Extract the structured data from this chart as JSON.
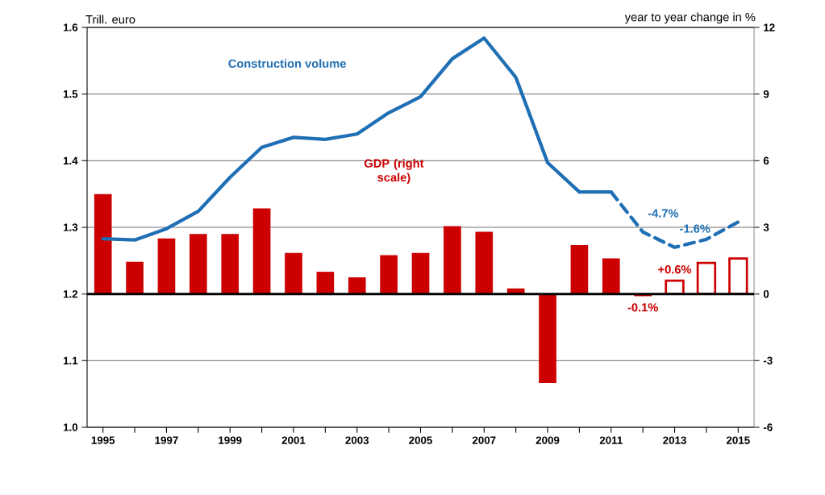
{
  "chart_data": {
    "type": "bar",
    "ylabel": "Trill. euro",
    "y2label": "year to year change in %",
    "xlim": [
      1994.5,
      2015.5
    ],
    "xticks": [
      1995,
      {
        "value": 1996,
        "label": null
      },
      1997,
      {
        "value": 1998,
        "label": null
      },
      1999,
      {
        "value": 2000,
        "label": null
      },
      2001,
      {
        "value": 2002,
        "label": null
      },
      2003,
      {
        "value": 2004,
        "label": null
      },
      2005,
      {
        "value": 2006,
        "label": null
      },
      2007,
      {
        "value": 2008,
        "label": null
      },
      2009,
      {
        "value": 2010,
        "label": null
      },
      2011,
      {
        "value": 2012,
        "label": null
      },
      2013,
      {
        "value": 2014,
        "label": null
      },
      2015
    ],
    "ylim": [
      1.0,
      1.6
    ],
    "yticks": [
      {
        "value": 1.0,
        "label": "1.0"
      },
      1.1,
      1.2,
      1.3,
      1.4,
      1.5,
      1.6
    ],
    "y2lim": [
      -6,
      12
    ],
    "y2ticks": [
      -6,
      -3,
      0,
      3,
      6,
      9,
      12
    ],
    "grid": "y",
    "annotations": [
      {
        "text": "-4.7%",
        "x": 2012,
        "y": 1.293
      },
      {
        "text": "-1.6%",
        "x": 2013,
        "y": 1.27
      }
    ],
    "ref_lines": [
      {
        "axis": "y2",
        "value": 0,
        "color": "#000000"
      }
    ],
    "series": [
      {
        "type": "line",
        "name": "Construction volume",
        "color": "#1f6fb4",
        "x": [
          1995,
          1996,
          1997,
          1998,
          1999,
          2000,
          2001,
          2002,
          2003,
          2004,
          2005,
          2006,
          2007,
          2008,
          2009,
          2010,
          2011
        ],
        "values": [
          1.283,
          1.281,
          1.298,
          1.324,
          1.375,
          1.42,
          1.435,
          1.432,
          1.44,
          1.472,
          1.496,
          1.553,
          1.584,
          1.525,
          1.397,
          1.353,
          1.353
        ]
      },
      {
        "type": "line",
        "line_style": "dashed",
        "color": "#1f6fb4",
        "x": [
          2011,
          2012,
          2013,
          2014,
          2015
        ],
        "values": [
          1.353,
          1.293,
          1.27,
          1.282,
          1.308
        ]
      },
      {
        "axis": "y2",
        "name": "GDP (right scale)",
        "color": "#cc0000",
        "x": [
          1995,
          1996,
          1997,
          1998,
          1999,
          2000,
          2001,
          2002,
          2003,
          2004,
          2005,
          2006,
          2007,
          2008,
          2009,
          2010,
          2011,
          2012
        ],
        "values": [
          4.5,
          1.45,
          2.5,
          2.7,
          2.7,
          3.85,
          1.85,
          1.0,
          0.75,
          1.75,
          1.85,
          3.05,
          2.8,
          0.25,
          -4.0,
          2.2,
          1.6,
          -0.1
        ],
        "value_labels": [
          null,
          null,
          null,
          null,
          null,
          null,
          null,
          null,
          null,
          null,
          null,
          null,
          null,
          null,
          null,
          null,
          null,
          "-0.1%"
        ]
      },
      {
        "axis": "y2",
        "line_style": "solid",
        "color": "#cc0000",
        "x": [
          2013,
          2014,
          2015
        ],
        "values": [
          0.6,
          1.4,
          1.6
        ],
        "value_labels": [
          "+0.6%",
          null,
          null
        ]
      }
    ]
  }
}
